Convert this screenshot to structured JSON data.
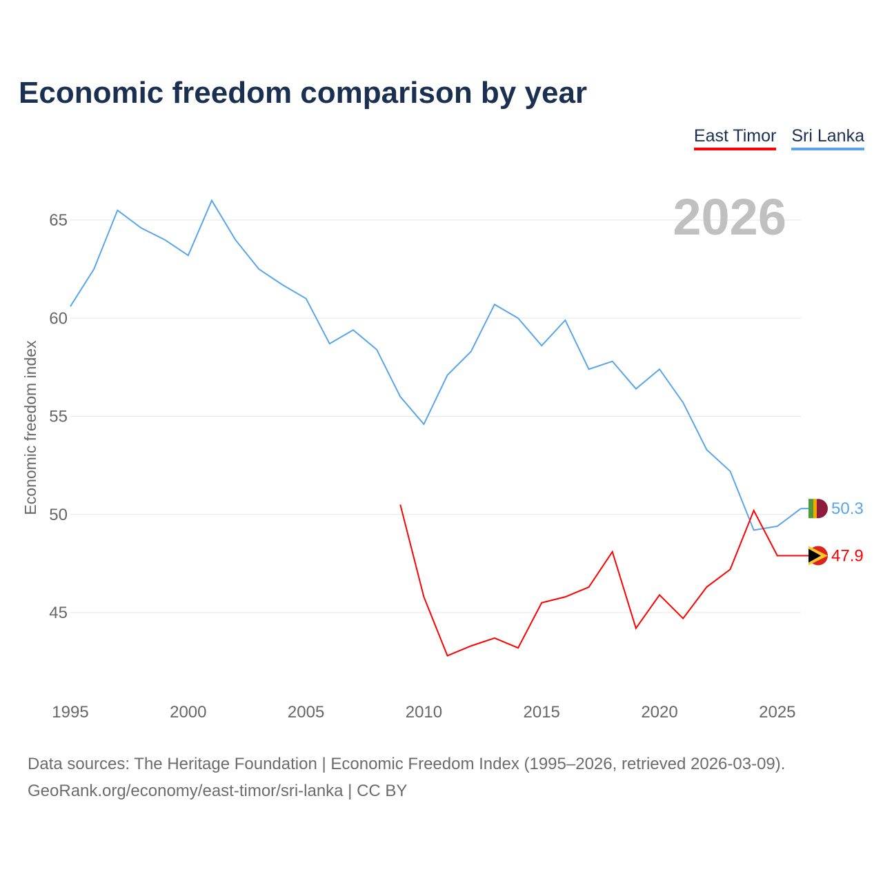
{
  "title": "Economic freedom comparison by year",
  "legend": [
    {
      "label": "East Timor",
      "color": "#ff0000"
    },
    {
      "label": "Sri Lanka",
      "color": "#5aa5ea"
    }
  ],
  "source_line1": "Data sources: The Heritage Foundation | Economic Freedom Index (1995–2026, retrieved 2026-03-09).",
  "source_line2": "GeoRank.org/economy/east-timor/sri-lanka | CC BY",
  "chart_data": {
    "type": "line",
    "title": "Economic freedom comparison by year",
    "xlabel": "",
    "ylabel": "Economic freedom index",
    "year_label": "2026",
    "xlim": [
      1995,
      2026
    ],
    "ylim": [
      41,
      67
    ],
    "xticks": [
      1995,
      2000,
      2005,
      2010,
      2015,
      2020,
      2025
    ],
    "yticks": [
      45,
      50,
      55,
      60,
      65
    ],
    "grid": true,
    "legend_position": "top-right",
    "series": [
      {
        "name": "Sri Lanka",
        "color": "#5aa5ea",
        "end_label": "50.3",
        "x": [
          1995,
          1996,
          1997,
          1998,
          1999,
          2000,
          2001,
          2002,
          2003,
          2004,
          2005,
          2006,
          2007,
          2008,
          2009,
          2010,
          2011,
          2012,
          2013,
          2014,
          2015,
          2016,
          2017,
          2018,
          2019,
          2020,
          2021,
          2022,
          2023,
          2024,
          2025,
          2026
        ],
        "values": [
          60.6,
          62.5,
          65.5,
          64.6,
          64.0,
          63.2,
          66.0,
          64.0,
          62.5,
          61.7,
          61.0,
          58.7,
          59.4,
          58.4,
          56.0,
          54.6,
          57.1,
          58.3,
          60.7,
          60.0,
          58.6,
          59.9,
          57.4,
          57.8,
          56.4,
          57.4,
          55.7,
          53.3,
          52.2,
          49.2,
          49.4,
          50.3
        ]
      },
      {
        "name": "East Timor",
        "color": "#ff0000",
        "end_label": "47.9",
        "x": [
          2009,
          2010,
          2011,
          2012,
          2013,
          2014,
          2015,
          2016,
          2017,
          2018,
          2019,
          2020,
          2021,
          2022,
          2023,
          2024,
          2025,
          2026
        ],
        "values": [
          50.5,
          45.8,
          42.8,
          43.3,
          43.7,
          43.2,
          45.5,
          45.8,
          46.3,
          48.1,
          44.2,
          45.9,
          44.7,
          46.3,
          47.2,
          50.2,
          47.9,
          47.9
        ]
      }
    ]
  }
}
